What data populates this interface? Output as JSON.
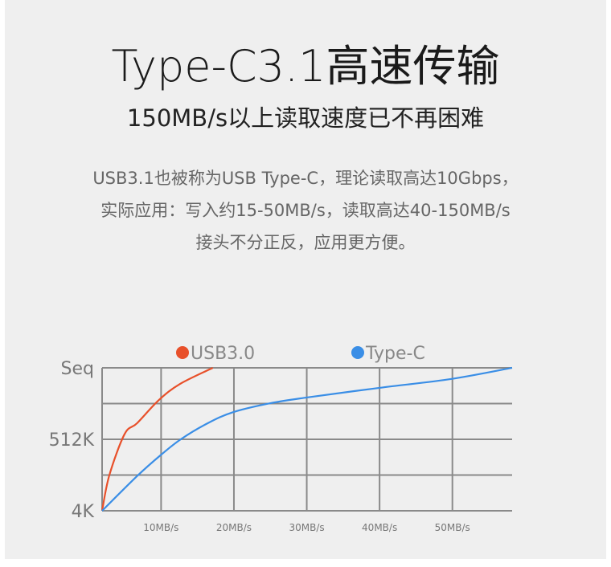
{
  "header": {
    "title": "Type-C3.1高速传输",
    "subtitle": "150MB/s以上读取速度已不再困难"
  },
  "description": [
    "USB3.1也被称为USB Type-C，理论读取高达10Gbps，",
    "实际应用：写入约15-50MB/s，读取高达40-150MB/s",
    "接头不分正反，应用更方便。"
  ],
  "chart_data": {
    "type": "line",
    "title": "",
    "xlabel": "",
    "ylabel": "",
    "x_ticks": [
      10,
      20,
      30,
      40,
      50
    ],
    "x_tick_labels": [
      "10MB/s",
      "20MB/s",
      "30MB/s",
      "40MB/s",
      "50MB/s"
    ],
    "xlim": [
      1.9,
      58.2
    ],
    "y_ticks": [
      0,
      1,
      2,
      3,
      4
    ],
    "y_tick_labels": [
      "4K",
      "",
      "512K",
      "",
      "Seq"
    ],
    "ylim": [
      0,
      4
    ],
    "grid": true,
    "legend_placement": "top",
    "series": [
      {
        "name": "USB3.0",
        "color": "#e8502a",
        "points": [
          [
            1.9,
            0
          ],
          [
            2.9,
            1.0
          ],
          [
            5.0,
            2.15
          ],
          [
            6.7,
            2.45
          ],
          [
            9.7,
            3.1
          ],
          [
            12.6,
            3.55
          ],
          [
            17.1,
            4
          ]
        ]
      },
      {
        "name": "Type-C",
        "color": "#3a8ee6",
        "points": [
          [
            1.9,
            0
          ],
          [
            6.7,
            0.97
          ],
          [
            9.9,
            1.55
          ],
          [
            12.7,
            2.0
          ],
          [
            16.4,
            2.45
          ],
          [
            19.9,
            2.76
          ],
          [
            25,
            3.01
          ],
          [
            30,
            3.17
          ],
          [
            40,
            3.44
          ],
          [
            49.9,
            3.69
          ],
          [
            58.2,
            4
          ]
        ]
      }
    ]
  }
}
